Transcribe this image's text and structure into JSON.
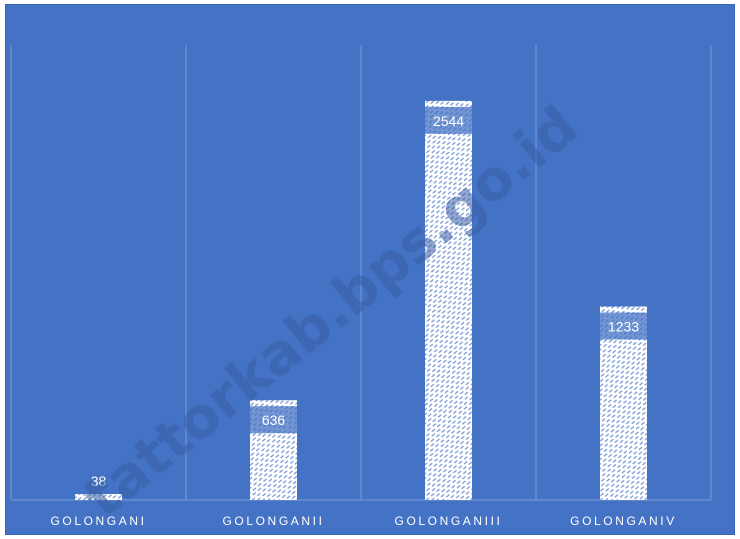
{
  "chart_data": {
    "type": "bar",
    "categories": [
      "GOLONGANI",
      "GOLONGANII",
      "GOLONGANIII",
      "GOLONGANIV"
    ],
    "values": [
      38,
      636,
      2544,
      1233
    ],
    "title": "",
    "xlabel": "",
    "ylabel": "",
    "ylim": [
      0,
      2900
    ],
    "grid": "vertical-separators",
    "legend": "none"
  },
  "watermark": "tattorkab.bps.go.id",
  "colors": {
    "background": "#4472c4",
    "bar_fill": "#ffffff",
    "bar_pattern": "#6f93d4",
    "separator": "#7b9bd8"
  }
}
